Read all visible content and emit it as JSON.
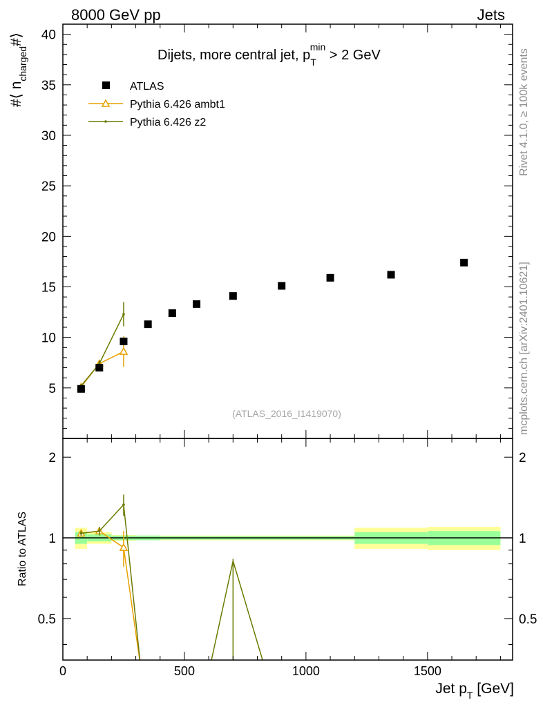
{
  "header": {
    "left": "8000 GeV pp",
    "right": "Jets"
  },
  "side_labels": {
    "rivet": "Rivet 4.1.0, ≥ 100k events",
    "mcplots": "mcplots.cern.ch [arXiv:2401.10621]"
  },
  "chart_data": {
    "type": "scatter",
    "title_parts": {
      "main": "Dijets, more central jet, p",
      "sub": "T",
      "sup": "min",
      "tail": " > 2 GeV"
    },
    "watermark": "(ATLAS_2016_I1419070)",
    "ylabel_parts": {
      "main": "#⟨ n",
      "sub": "charged",
      "tail": "#⟩"
    },
    "xlabel_parts": {
      "main": "Jet p",
      "sub": "T",
      "tail": " [GeV]"
    },
    "ratio_ylabel": "Ratio to ATLAS",
    "xlim": [
      0,
      1850
    ],
    "ylim": [
      0,
      41
    ],
    "ratio_ylim": [
      0.35,
      2.35
    ],
    "x_ticks": [
      "0",
      "500",
      "1000",
      "1500"
    ],
    "x_tick_values": [
      0,
      500,
      1000,
      1500
    ],
    "y_ticks": [
      "5",
      "10",
      "15",
      "20",
      "25",
      "30",
      "35",
      "40"
    ],
    "y_tick_values": [
      5,
      10,
      15,
      20,
      25,
      30,
      35,
      40
    ],
    "ratio_ticks": [
      "0.5",
      "1",
      "2"
    ],
    "ratio_tick_values": [
      0.5,
      1,
      2
    ],
    "bins": [
      [
        50,
        100
      ],
      [
        100,
        200
      ],
      [
        200,
        300
      ],
      [
        300,
        400
      ],
      [
        400,
        500
      ],
      [
        500,
        600
      ],
      [
        600,
        800
      ],
      [
        800,
        1000
      ],
      [
        1000,
        1200
      ],
      [
        1200,
        1500
      ],
      [
        1500,
        1800
      ]
    ],
    "atlas": {
      "name": "ATLAS",
      "x": [
        75,
        150,
        250,
        350,
        450,
        550,
        700,
        900,
        1100,
        1350,
        1650
      ],
      "y": [
        4.9,
        7.0,
        9.6,
        11.3,
        12.4,
        13.3,
        14.1,
        15.1,
        15.9,
        16.2,
        17.4
      ],
      "band_inner": [
        0.05,
        0.03,
        0.02,
        0.02,
        0.015,
        0.015,
        0.015,
        0.015,
        0.015,
        0.05,
        0.06
      ],
      "band_outer": [
        0.09,
        0.05,
        0.025,
        0.02,
        0.02,
        0.02,
        0.02,
        0.02,
        0.02,
        0.09,
        0.1
      ]
    },
    "series": [
      {
        "name": "Pythia 6.426 ambt1",
        "color": "#e8a000",
        "marker": "triangle",
        "x": [
          75,
          150,
          250
        ],
        "y": [
          5.1,
          7.4,
          8.6
        ],
        "err": [
          0.2,
          0.3,
          1.5
        ],
        "ratio": [
          1.04,
          1.06,
          0.92
        ],
        "ratio_err": [
          0.02,
          0.03,
          0.14
        ],
        "ratio_drop_x": 320
      },
      {
        "name": "Pythia 6.426 z2",
        "color": "#6b7a00",
        "marker": "dot",
        "x": [
          75,
          150,
          250
        ],
        "y": [
          5.2,
          7.4,
          12.3
        ],
        "err": [
          0.2,
          0.3,
          1.2
        ],
        "ratio": [
          1.04,
          1.06,
          1.33
        ],
        "ratio_err": [
          0.02,
          0.04,
          0.12
        ],
        "ratio_drop_x": 320,
        "ratio_spike": {
          "rise_x": 605,
          "peak_x": 700,
          "peak": 0.82,
          "fall_x": 830
        }
      }
    ],
    "legend_position": "top-left",
    "grid": false
  }
}
